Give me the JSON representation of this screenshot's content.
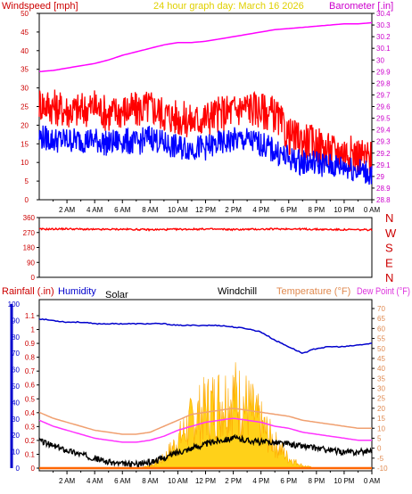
{
  "chart_data": [
    {
      "id": "wind_baro",
      "type": "line",
      "title": "24 hour graph day:  March 16 2026",
      "ylabel_left": "Windspeed [mph]",
      "ylabel_right": "Barometer [.in]",
      "ylim_left": [
        0,
        50
      ],
      "ylim_right": [
        28.8,
        30.4
      ],
      "yticks_left": [
        "0",
        "5",
        "10",
        "15",
        "20",
        "25",
        "30",
        "35",
        "40",
        "45",
        "50"
      ],
      "yticks_right": [
        "28.8",
        "28.9",
        "29",
        "29.1",
        "29.2",
        "29.3",
        "29.4",
        "29.5",
        "29.6",
        "29.7",
        "29.8",
        "29.9",
        "30",
        "30.1",
        "30.2",
        "30.3",
        "30.4"
      ],
      "xticks": [
        "2 AM",
        "4 AM",
        "6 AM",
        "8 AM",
        "10 AM",
        "12 PM",
        "2 PM",
        "4 PM",
        "6 PM",
        "8 PM",
        "10 PM",
        "0 AM"
      ],
      "x": [
        0,
        1,
        2,
        3,
        4,
        5,
        6,
        7,
        8,
        9,
        10,
        11,
        12,
        13,
        14,
        15,
        16,
        17,
        18,
        19,
        20,
        21,
        22,
        23,
        24
      ],
      "series": [
        {
          "key": "barometer",
          "axis": "right",
          "color": "#ff00ff",
          "values": [
            29.9,
            29.91,
            29.93,
            29.95,
            29.97,
            30.0,
            30.04,
            30.07,
            30.1,
            30.13,
            30.15,
            30.15,
            30.16,
            30.18,
            30.2,
            30.22,
            30.24,
            30.26,
            30.27,
            30.28,
            30.29,
            30.3,
            30.31,
            30.31,
            30.32
          ]
        },
        {
          "key": "gust",
          "axis": "left",
          "color": "#ff0000",
          "values": [
            26,
            25,
            24,
            24,
            25,
            23,
            24,
            24,
            25,
            23,
            22,
            21,
            22,
            23,
            24,
            25,
            24,
            23,
            17,
            16,
            15,
            13,
            13,
            12,
            11
          ]
        },
        {
          "key": "windspeed",
          "axis": "left",
          "color": "#0000ff",
          "values": [
            17,
            16,
            16,
            16,
            16,
            15,
            16,
            15,
            17,
            15,
            14,
            14,
            14,
            15,
            16,
            16,
            15,
            13,
            11,
            10,
            10,
            9,
            9,
            8,
            7
          ]
        }
      ]
    },
    {
      "id": "direction",
      "type": "line",
      "ylim": [
        0,
        360
      ],
      "yticks": [
        "0",
        "90",
        "180",
        "270",
        "360"
      ],
      "compass_labels": [
        "N",
        "W",
        "S",
        "E",
        "N"
      ],
      "x": [
        0,
        2,
        4,
        6,
        8,
        10,
        12,
        14,
        16,
        18,
        20,
        22,
        24
      ],
      "series": [
        {
          "key": "wind_direction",
          "color": "#ff0000",
          "values": [
            290,
            292,
            288,
            290,
            287,
            289,
            291,
            288,
            290,
            292,
            289,
            287,
            286
          ]
        }
      ]
    },
    {
      "id": "temp_hum",
      "type": "line",
      "label_rain": "Rainfall (.in)",
      "label_humidity": "Humidity",
      "label_solar": "Solar",
      "label_windchill": "Windchill",
      "label_temperature": "Temperature (°F)",
      "label_dewpoint": "Dew Point (°F)",
      "ylim_humidity": [
        0,
        100
      ],
      "yticks_humidity": [
        "0",
        "10",
        "20",
        "30",
        "40",
        "50",
        "60",
        "70",
        "80",
        "90",
        "100"
      ],
      "ylim_rain": [
        0,
        1.1
      ],
      "yticks_rain": [
        "0",
        "0.1",
        "0.2",
        "0.3",
        "0.4",
        "0.5",
        "0.6",
        "0.7",
        "0.8",
        "0.9",
        "1",
        "1.1"
      ],
      "ylim_temp": [
        -10,
        70
      ],
      "yticks_temp": [
        "-10",
        "-5",
        "0",
        "5",
        "10",
        "15",
        "20",
        "25",
        "30",
        "35",
        "40",
        "45",
        "50",
        "55",
        "60",
        "65",
        "70"
      ],
      "xticks": [
        "2 AM",
        "4 AM",
        "6 AM",
        "8 AM",
        "10 AM",
        "12 PM",
        "2 PM",
        "4 PM",
        "6 PM",
        "8 PM",
        "10 PM",
        "0 AM"
      ],
      "x": [
        0,
        1,
        2,
        3,
        4,
        5,
        6,
        7,
        8,
        9,
        10,
        11,
        12,
        13,
        14,
        15,
        16,
        17,
        18,
        19,
        20,
        21,
        22,
        23,
        24
      ],
      "series": [
        {
          "key": "humidity",
          "axis": "humidity",
          "color": "#0000cc",
          "values": [
            91,
            90,
            89,
            89,
            88,
            88,
            88,
            88,
            88,
            88,
            87,
            87,
            87,
            87,
            86,
            85,
            83,
            78,
            74,
            70,
            73,
            74,
            74,
            75,
            76
          ]
        },
        {
          "key": "temperature",
          "axis": "temp",
          "color": "#f0a070",
          "values": [
            18,
            15,
            13,
            11,
            9,
            8,
            7,
            7,
            8,
            11,
            14,
            17,
            18,
            19,
            20,
            19,
            18,
            17,
            16,
            14,
            13,
            12,
            11,
            10,
            10
          ]
        },
        {
          "key": "dew_point",
          "axis": "temp",
          "color": "#ff33ff",
          "values": [
            14,
            11,
            9,
            7,
            5,
            4,
            3,
            3,
            4,
            6,
            9,
            11,
            13,
            14,
            15,
            14,
            13,
            11,
            10,
            8,
            7,
            6,
            5,
            4,
            4
          ]
        },
        {
          "key": "windchill",
          "axis": "temp",
          "color": "#000000",
          "values": [
            4,
            1,
            -1,
            -3,
            -5,
            -7,
            -8,
            -8,
            -7,
            -5,
            -2,
            0,
            2,
            4,
            5,
            4,
            3,
            3,
            2,
            1,
            0,
            -1,
            -2,
            -2,
            -1
          ]
        },
        {
          "key": "solar",
          "axis": "humidity",
          "color": "#ffcc00",
          "values": [
            0,
            0,
            0,
            0,
            0,
            0,
            0,
            0,
            2,
            8,
            22,
            38,
            48,
            54,
            58,
            50,
            35,
            20,
            8,
            2,
            0,
            0,
            0,
            0,
            0
          ]
        },
        {
          "key": "rainfall",
          "axis": "rain",
          "color": "#ff6600",
          "values": [
            0,
            0,
            0,
            0,
            0,
            0,
            0,
            0,
            0,
            0,
            0,
            0,
            0,
            0,
            0,
            0,
            0,
            0,
            0,
            0,
            0,
            0,
            0,
            0,
            0
          ]
        }
      ]
    }
  ]
}
